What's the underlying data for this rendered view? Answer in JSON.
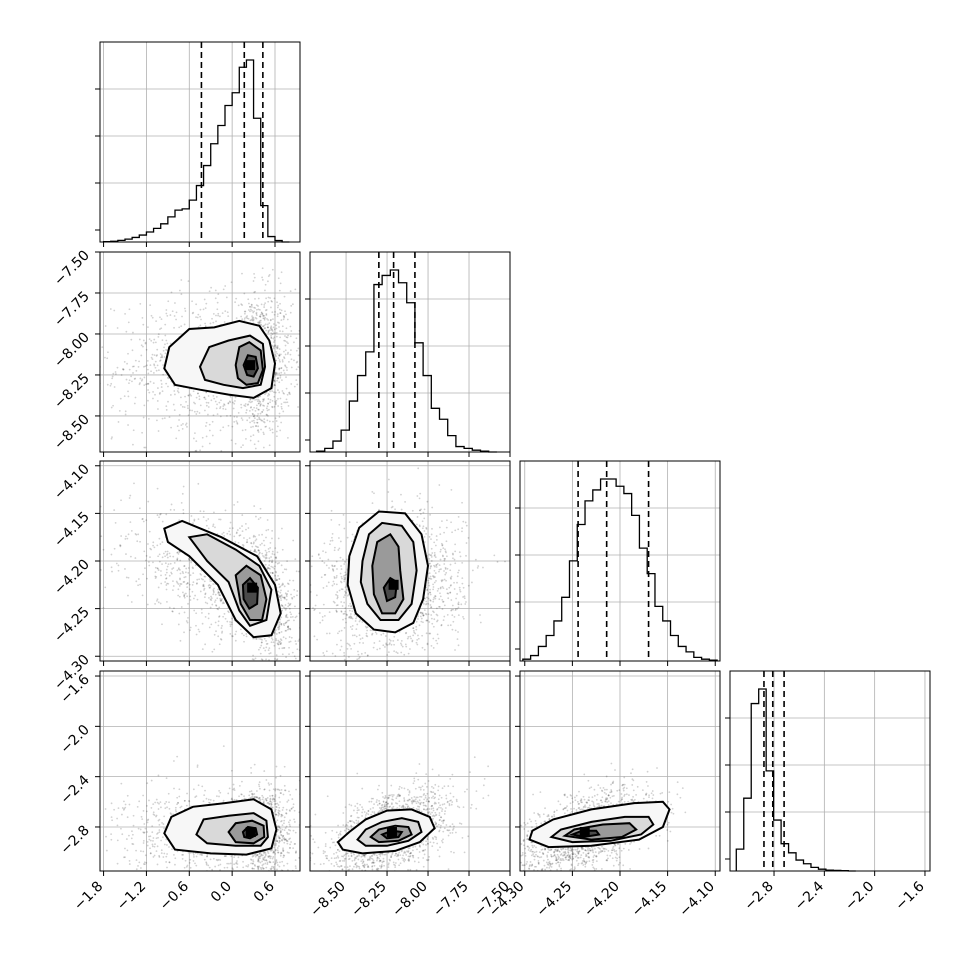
{
  "chart_data": {
    "type": "corner",
    "parameters": 4,
    "grid": true,
    "ranges": [
      [
        -1.85,
        0.95
      ],
      [
        -8.72,
        -7.5
      ],
      [
        -4.305,
        -4.095
      ],
      [
        -3.15,
        -1.56
      ]
    ],
    "tick_values": [
      [
        -1.8,
        -1.2,
        -0.6,
        0.0,
        0.6
      ],
      [
        -8.5,
        -8.25,
        -8.0,
        -7.75,
        -7.5
      ],
      [
        -4.3,
        -4.25,
        -4.2,
        -4.15,
        -4.1
      ],
      [
        -2.8,
        -2.4,
        -2.0,
        -1.6
      ]
    ],
    "tick_labels": [
      [
        "−1.8",
        "−1.2",
        "−0.6",
        "0.0",
        "0.6"
      ],
      [
        "−8.50",
        "−8.25",
        "−8.00",
        "−7.75",
        "−7.50"
      ],
      [
        "−4.30",
        "−4.25",
        "−4.20",
        "−4.15",
        "−4.10"
      ],
      [
        "−2.8",
        "−2.4",
        "−2.0",
        "−1.6"
      ]
    ],
    "y_tick_labels": [
      null,
      [
        "−8.50",
        "−8.25",
        "−8.00",
        "−7.75",
        "−7.50"
      ],
      [
        "−4.30",
        "−4.25",
        "−4.20",
        "−4.15",
        "−4.10"
      ],
      [
        "−2.8",
        "−2.4",
        "−2.0",
        "−1.6"
      ]
    ],
    "quantiles": [
      [
        -0.43,
        0.17,
        0.43
      ],
      [
        -8.3,
        -8.21,
        -8.08
      ],
      [
        -4.244,
        -4.214,
        -4.17
      ],
      [
        -2.88,
        -2.81,
        -2.72
      ]
    ],
    "histograms": [
      {
        "lo": -1.8,
        "hi": 0.8,
        "counts": [
          0.2,
          0.4,
          0.9,
          1.6,
          2.5,
          3.8,
          5.5,
          7.5,
          10,
          13.8,
          17.5,
          18.2,
          23,
          31,
          42,
          54,
          64,
          75,
          82,
          96,
          100,
          68,
          20,
          3,
          0.8,
          0
        ]
      },
      {
        "lo": -8.68,
        "hi": -7.58,
        "counts": [
          0.5,
          2,
          6,
          12,
          28,
          42,
          55,
          92,
          97,
          100,
          93,
          82,
          60,
          42,
          24,
          18,
          9,
          3,
          2,
          1,
          0.5,
          0
        ]
      },
      {
        "lo": -4.302,
        "hi": -4.098,
        "counts": [
          1,
          3,
          8,
          14,
          22,
          35,
          55,
          75,
          88,
          94,
          100,
          100,
          96,
          92,
          80,
          62,
          48,
          30,
          22,
          14,
          8,
          5,
          2,
          1,
          0.5
        ]
      },
      {
        "lo": -3.1,
        "hi": -2.15,
        "counts": [
          12,
          40,
          92,
          100,
          55,
          28,
          15,
          10,
          6,
          4,
          2,
          1,
          0.5,
          0.3,
          0.2,
          0
        ]
      }
    ],
    "pairs": [
      {
        "x": 0,
        "y": 1,
        "center": [
          0.25,
          -8.19
        ],
        "sigma": [
          0.42,
          0.17
        ],
        "rho": 0.05,
        "skew": -0.55,
        "contours": [
          [
            [
              -0.95,
              -8.21
            ],
            [
              -0.88,
              -8.08
            ],
            [
              -0.6,
              -7.97
            ],
            [
              -0.25,
              -7.96
            ],
            [
              0.1,
              -7.92
            ],
            [
              0.38,
              -7.95
            ],
            [
              0.52,
              -8.04
            ],
            [
              0.6,
              -8.18
            ],
            [
              0.55,
              -8.33
            ],
            [
              0.3,
              -8.39
            ],
            [
              -0.05,
              -8.37
            ],
            [
              -0.45,
              -8.34
            ],
            [
              -0.8,
              -8.31
            ]
          ],
          [
            [
              -0.45,
              -8.2
            ],
            [
              -0.32,
              -8.08
            ],
            [
              -0.05,
              -8.04
            ],
            [
              0.25,
              -8.01
            ],
            [
              0.43,
              -8.06
            ],
            [
              0.46,
              -8.2
            ],
            [
              0.4,
              -8.31
            ],
            [
              0.15,
              -8.33
            ],
            [
              -0.12,
              -8.31
            ],
            [
              -0.38,
              -8.28
            ]
          ],
          [
            [
              0.05,
              -8.19
            ],
            [
              0.1,
              -8.08
            ],
            [
              0.24,
              -8.05
            ],
            [
              0.4,
              -8.1
            ],
            [
              0.43,
              -8.22
            ],
            [
              0.36,
              -8.3
            ],
            [
              0.2,
              -8.31
            ],
            [
              0.08,
              -8.27
            ]
          ],
          [
            [
              0.16,
              -8.19
            ],
            [
              0.22,
              -8.13
            ],
            [
              0.33,
              -8.14
            ],
            [
              0.36,
              -8.21
            ],
            [
              0.3,
              -8.26
            ],
            [
              0.21,
              -8.25
            ]
          ]
        ]
      },
      {
        "x": 0,
        "y": 2,
        "center": [
          0.28,
          -4.228
        ],
        "sigma": [
          0.45,
          0.028
        ],
        "rho": -0.55,
        "skew": -0.4,
        "contours": [
          [
            [
              -0.95,
              -4.166
            ],
            [
              -0.7,
              -4.158
            ],
            [
              -0.15,
              -4.175
            ],
            [
              0.35,
              -4.195
            ],
            [
              0.6,
              -4.225
            ],
            [
              0.68,
              -4.255
            ],
            [
              0.55,
              -4.278
            ],
            [
              0.3,
              -4.28
            ],
            [
              0.05,
              -4.262
            ],
            [
              -0.2,
              -4.225
            ],
            [
              -0.6,
              -4.195
            ],
            [
              -0.9,
              -4.18
            ]
          ],
          [
            [
              -0.6,
              -4.175
            ],
            [
              -0.35,
              -4.172
            ],
            [
              0.05,
              -4.188
            ],
            [
              0.38,
              -4.205
            ],
            [
              0.55,
              -4.23
            ],
            [
              0.48,
              -4.262
            ],
            [
              0.25,
              -4.268
            ],
            [
              0.1,
              -4.252
            ],
            [
              -0.05,
              -4.222
            ],
            [
              -0.35,
              -4.2
            ]
          ],
          [
            [
              0.05,
              -4.215
            ],
            [
              0.2,
              -4.205
            ],
            [
              0.4,
              -4.215
            ],
            [
              0.48,
              -4.24
            ],
            [
              0.42,
              -4.262
            ],
            [
              0.25,
              -4.262
            ],
            [
              0.12,
              -4.245
            ]
          ],
          [
            [
              0.15,
              -4.225
            ],
            [
              0.25,
              -4.218
            ],
            [
              0.36,
              -4.228
            ],
            [
              0.35,
              -4.245
            ],
            [
              0.24,
              -4.25
            ],
            [
              0.16,
              -4.24
            ]
          ]
        ]
      },
      {
        "x": 1,
        "y": 2,
        "center": [
          -8.21,
          -4.225
        ],
        "sigma": [
          0.16,
          0.028
        ],
        "rho": 0.1,
        "skew": 0,
        "contours": [
          [
            [
              -8.48,
              -4.195
            ],
            [
              -8.42,
              -4.165
            ],
            [
              -8.3,
              -4.148
            ],
            [
              -8.14,
              -4.15
            ],
            [
              -8.04,
              -4.172
            ],
            [
              -8.0,
              -4.205
            ],
            [
              -8.03,
              -4.24
            ],
            [
              -8.09,
              -4.265
            ],
            [
              -8.2,
              -4.275
            ],
            [
              -8.33,
              -4.272
            ],
            [
              -8.44,
              -4.255
            ],
            [
              -8.49,
              -4.225
            ]
          ],
          [
            [
              -8.4,
              -4.2
            ],
            [
              -8.36,
              -4.172
            ],
            [
              -8.28,
              -4.16
            ],
            [
              -8.16,
              -4.163
            ],
            [
              -8.09,
              -4.18
            ],
            [
              -8.07,
              -4.21
            ],
            [
              -8.1,
              -4.245
            ],
            [
              -8.18,
              -4.262
            ],
            [
              -8.29,
              -4.262
            ],
            [
              -8.37,
              -4.245
            ],
            [
              -8.41,
              -4.222
            ]
          ],
          [
            [
              -8.34,
              -4.205
            ],
            [
              -8.31,
              -4.18
            ],
            [
              -8.23,
              -4.172
            ],
            [
              -8.18,
              -4.185
            ],
            [
              -8.17,
              -4.21
            ],
            [
              -8.15,
              -4.24
            ],
            [
              -8.2,
              -4.255
            ],
            [
              -8.28,
              -4.255
            ],
            [
              -8.33,
              -4.235
            ]
          ],
          [
            [
              -8.27,
              -4.228
            ],
            [
              -8.23,
              -4.218
            ],
            [
              -8.19,
              -4.222
            ],
            [
              -8.2,
              -4.238
            ],
            [
              -8.25,
              -4.242
            ]
          ]
        ]
      },
      {
        "x": 0,
        "y": 3,
        "center": [
          0.26,
          -2.84
        ],
        "sigma": [
          0.42,
          0.14
        ],
        "rho": 0.05,
        "skew": -0.5,
        "contours": [
          [
            [
              -0.95,
              -2.85
            ],
            [
              -0.85,
              -2.72
            ],
            [
              -0.55,
              -2.64
            ],
            [
              -0.1,
              -2.61
            ],
            [
              0.3,
              -2.58
            ],
            [
              0.55,
              -2.66
            ],
            [
              0.62,
              -2.82
            ],
            [
              0.55,
              -2.97
            ],
            [
              0.2,
              -3.02
            ],
            [
              -0.3,
              -3.01
            ],
            [
              -0.8,
              -2.98
            ]
          ],
          [
            [
              -0.5,
              -2.86
            ],
            [
              -0.4,
              -2.74
            ],
            [
              -0.05,
              -2.71
            ],
            [
              0.3,
              -2.69
            ],
            [
              0.48,
              -2.75
            ],
            [
              0.5,
              -2.88
            ],
            [
              0.4,
              -2.95
            ],
            [
              0.05,
              -2.95
            ],
            [
              -0.35,
              -2.93
            ]
          ],
          [
            [
              -0.05,
              -2.84
            ],
            [
              0.05,
              -2.77
            ],
            [
              0.28,
              -2.75
            ],
            [
              0.44,
              -2.79
            ],
            [
              0.45,
              -2.88
            ],
            [
              0.3,
              -2.93
            ],
            [
              0.05,
              -2.92
            ]
          ],
          [
            [
              0.15,
              -2.84
            ],
            [
              0.22,
              -2.8
            ],
            [
              0.33,
              -2.81
            ],
            [
              0.35,
              -2.86
            ],
            [
              0.25,
              -2.89
            ],
            [
              0.17,
              -2.88
            ]
          ]
        ]
      },
      {
        "x": 1,
        "y": 3,
        "center": [
          -8.22,
          -2.84
        ],
        "sigma": [
          0.14,
          0.13
        ],
        "rho": 0.5,
        "skew": 0,
        "contours": [
          [
            [
              -8.55,
              -2.92
            ],
            [
              -8.48,
              -2.84
            ],
            [
              -8.38,
              -2.74
            ],
            [
              -8.25,
              -2.67
            ],
            [
              -8.1,
              -2.66
            ],
            [
              -7.99,
              -2.72
            ],
            [
              -7.96,
              -2.81
            ],
            [
              -8.05,
              -2.92
            ],
            [
              -8.2,
              -2.99
            ],
            [
              -8.4,
              -3.01
            ],
            [
              -8.52,
              -2.98
            ]
          ],
          [
            [
              -8.43,
              -2.9
            ],
            [
              -8.38,
              -2.82
            ],
            [
              -8.28,
              -2.76
            ],
            [
              -8.16,
              -2.73
            ],
            [
              -8.06,
              -2.76
            ],
            [
              -8.04,
              -2.84
            ],
            [
              -8.12,
              -2.91
            ],
            [
              -8.25,
              -2.95
            ],
            [
              -8.38,
              -2.95
            ]
          ],
          [
            [
              -8.35,
              -2.88
            ],
            [
              -8.3,
              -2.82
            ],
            [
              -8.2,
              -2.79
            ],
            [
              -8.12,
              -2.8
            ],
            [
              -8.1,
              -2.86
            ],
            [
              -8.18,
              -2.91
            ],
            [
              -8.3,
              -2.92
            ]
          ],
          [
            [
              -8.28,
              -2.86
            ],
            [
              -8.22,
              -2.83
            ],
            [
              -8.16,
              -2.84
            ],
            [
              -8.18,
              -2.88
            ],
            [
              -8.25,
              -2.89
            ]
          ]
        ]
      },
      {
        "x": 2,
        "y": 3,
        "center": [
          -4.237,
          -2.84
        ],
        "sigma": [
          0.027,
          0.13
        ],
        "rho": 0.5,
        "skew": 0,
        "contours": [
          [
            [
              -4.295,
              -2.9
            ],
            [
              -4.292,
              -2.83
            ],
            [
              -4.27,
              -2.74
            ],
            [
              -4.23,
              -2.66
            ],
            [
              -4.185,
              -2.61
            ],
            [
              -4.155,
              -2.6
            ],
            [
              -4.148,
              -2.66
            ],
            [
              -4.155,
              -2.8
            ],
            [
              -4.18,
              -2.9
            ],
            [
              -4.23,
              -2.95
            ],
            [
              -4.275,
              -2.96
            ]
          ],
          [
            [
              -4.272,
              -2.88
            ],
            [
              -4.262,
              -2.82
            ],
            [
              -4.23,
              -2.76
            ],
            [
              -4.195,
              -2.72
            ],
            [
              -4.17,
              -2.72
            ],
            [
              -4.165,
              -2.78
            ],
            [
              -4.178,
              -2.86
            ],
            [
              -4.21,
              -2.91
            ],
            [
              -4.25,
              -2.92
            ]
          ],
          [
            [
              -4.258,
              -2.87
            ],
            [
              -4.248,
              -2.82
            ],
            [
              -4.218,
              -2.78
            ],
            [
              -4.19,
              -2.77
            ],
            [
              -4.183,
              -2.82
            ],
            [
              -4.198,
              -2.88
            ],
            [
              -4.23,
              -2.9
            ]
          ],
          [
            [
              -4.25,
              -2.86
            ],
            [
              -4.24,
              -2.83
            ],
            [
              -4.225,
              -2.83
            ],
            [
              -4.222,
              -2.86
            ],
            [
              -4.238,
              -2.88
            ]
          ]
        ]
      }
    ]
  }
}
